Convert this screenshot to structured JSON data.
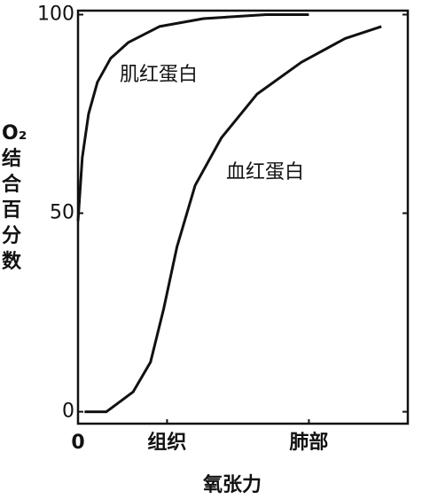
{
  "chart_data": {
    "type": "line",
    "y_label": "O₂结合百分数",
    "x_label": "氧张力",
    "xlim": [
      0,
      100
    ],
    "xticks": [
      0,
      {
        "value": 27,
        "label": "组织"
      },
      {
        "value": 70,
        "label": "肺部"
      }
    ],
    "ylim": [
      -3,
      101
    ],
    "yticks": [
      0,
      50,
      100
    ],
    "series": [
      {
        "name": "肌红蛋白",
        "color": "#111111",
        "x": [
          0,
          1.3,
          3.2,
          5.9,
          9.9,
          15.3,
          24.7,
          38,
          57,
          70
        ],
        "values": [
          48,
          64,
          75,
          83,
          89,
          93,
          97,
          99,
          100,
          100
        ]
      },
      {
        "name": "血红蛋白",
        "color": "#111111",
        "x": [
          2,
          8.6,
          16.7,
          22,
          26,
          30,
          35.5,
          43.5,
          54.3,
          67.7,
          81,
          92
        ],
        "values": [
          0,
          0,
          5,
          12.5,
          26,
          41.5,
          57,
          69,
          80,
          88,
          94,
          97
        ]
      }
    ]
  }
}
